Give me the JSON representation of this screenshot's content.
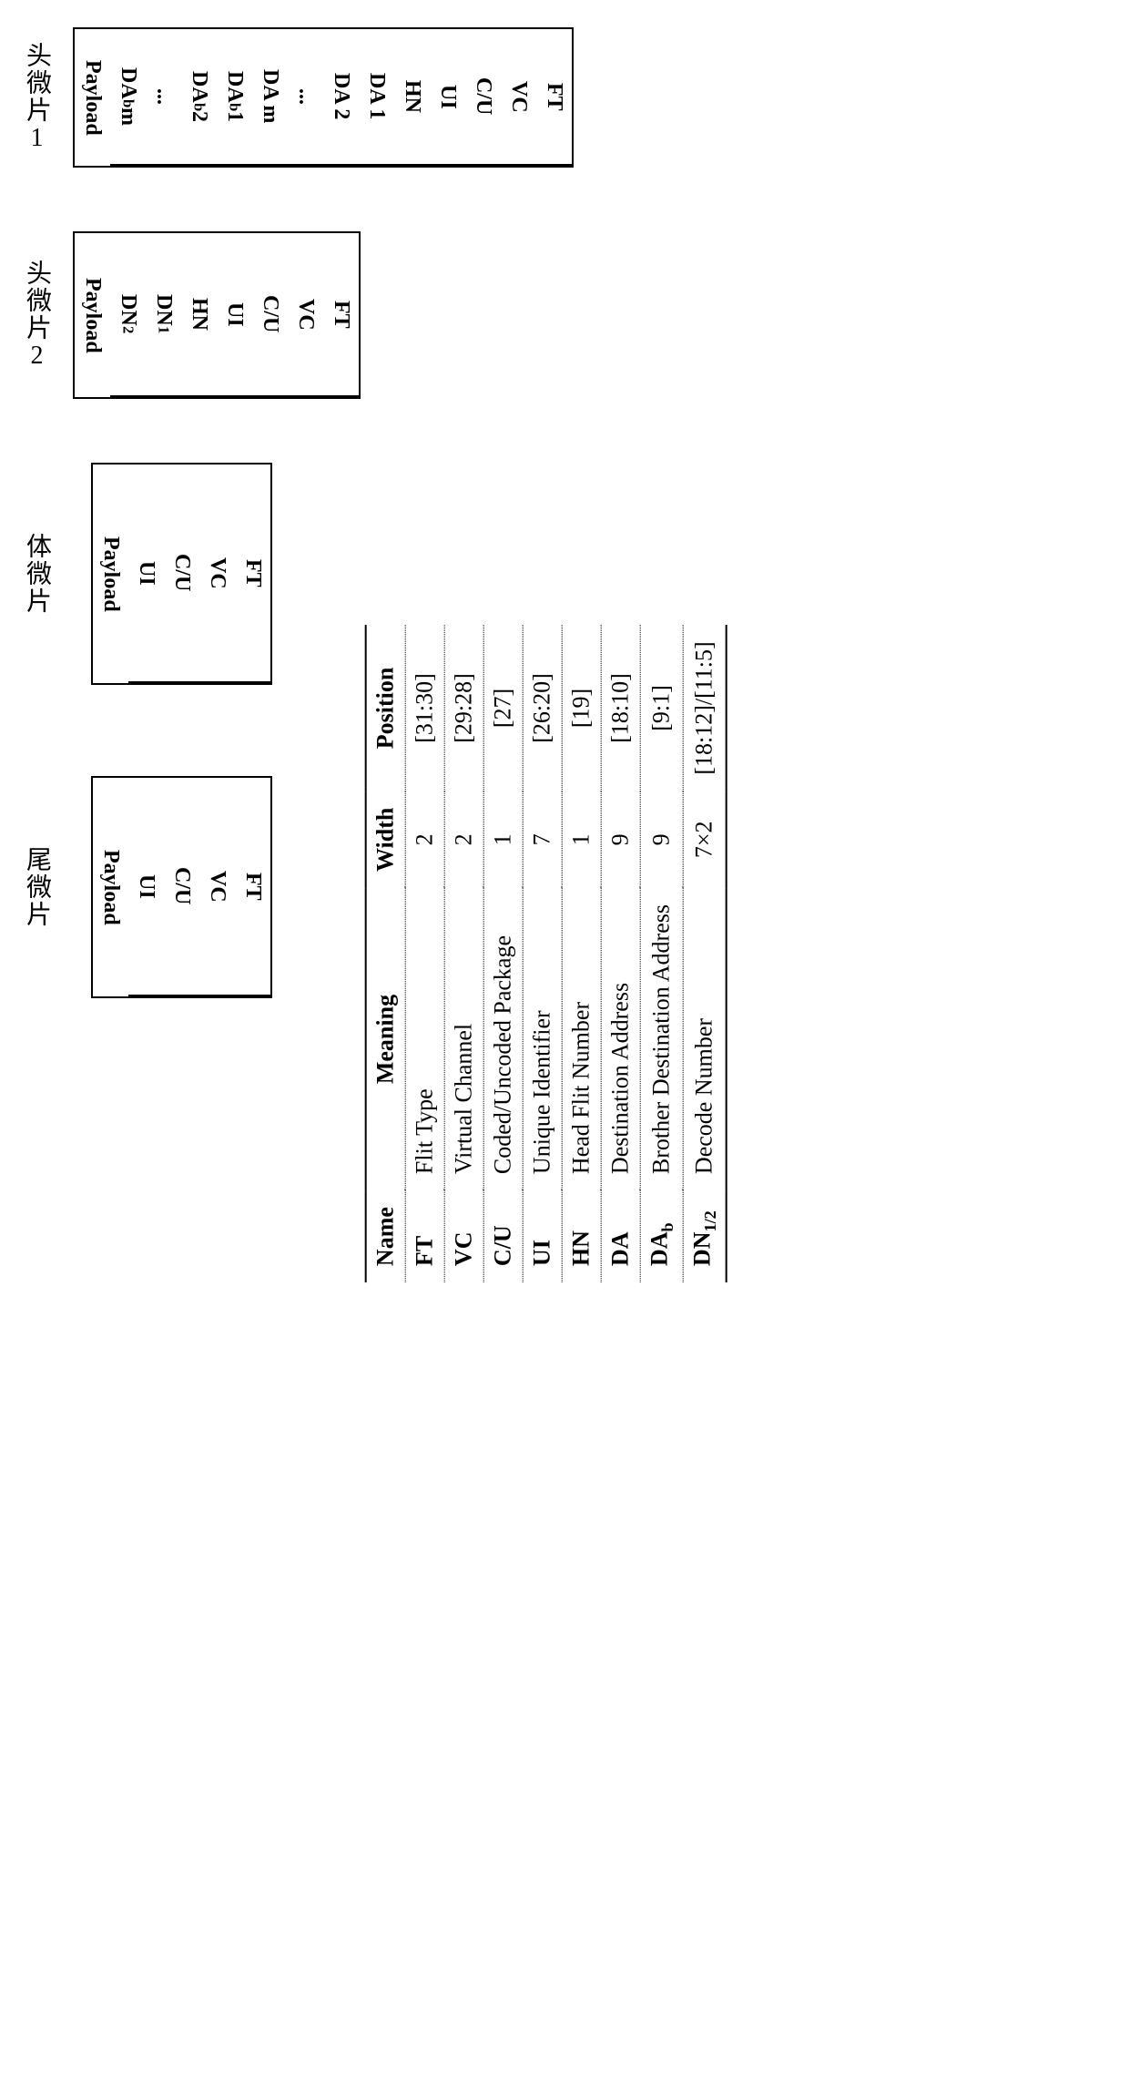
{
  "head1": {
    "label": "头微片1",
    "cells": [
      "FT",
      "VC",
      "C/U",
      "UI",
      "HN",
      "DA 1",
      "DA 2",
      "...",
      "DA m",
      "DAb 1",
      "DAb 2",
      "...",
      "DAb m",
      "Payload"
    ],
    "widths": [
      58,
      58,
      64,
      50,
      56,
      80,
      80,
      40,
      90,
      92,
      92,
      40,
      100,
      150
    ]
  },
  "head2": {
    "label": "头微片2",
    "cells": [
      "FT",
      "VC",
      "C/U",
      "UI",
      "HN",
      "DN1",
      "DN2",
      "Payload"
    ],
    "widths": [
      58,
      58,
      64,
      50,
      56,
      68,
      68,
      180
    ]
  },
  "body": {
    "label": "体微片",
    "cells": [
      "FT",
      "VC",
      "C/U",
      "UI",
      "Payload"
    ],
    "widths": [
      58,
      58,
      64,
      50,
      240
    ]
  },
  "tail": {
    "label": "尾微片",
    "cells": [
      "FT",
      "VC",
      "C/U",
      "UI",
      "Payload"
    ],
    "widths": [
      58,
      58,
      64,
      50,
      240
    ]
  },
  "definitions": {
    "headers": [
      "Name",
      "Meaning",
      "Width",
      "Position"
    ],
    "rows": [
      {
        "name": "FT",
        "meaning": "Flit Type",
        "width": "2",
        "position": "[31:30]"
      },
      {
        "name": "VC",
        "meaning": "Virtual Channel",
        "width": "2",
        "position": "[29:28]"
      },
      {
        "name": "C/U",
        "meaning": "Coded/Uncoded Package",
        "width": "1",
        "position": "[27]"
      },
      {
        "name": "UI",
        "meaning": "Unique Identifier",
        "width": "7",
        "position": "[26:20]"
      },
      {
        "name": "HN",
        "meaning": "Head Flit Number",
        "width": "1",
        "position": "[19]"
      },
      {
        "name": "DA",
        "meaning": "Destination Address",
        "width": "9",
        "position": "[18:10]"
      },
      {
        "name": "DAb",
        "meaning": "Brother Destination Address",
        "width": "9",
        "position": "[9:1]"
      },
      {
        "name": "DN1/2",
        "meaning": "Decode Number",
        "width": "7×2",
        "position": "[18:12]/[11:5]"
      }
    ]
  },
  "style": {
    "border_color": "#000000",
    "background": "#ffffff",
    "font_family": "Times New Roman",
    "label_fontsize": 28,
    "cell_fontsize": 24,
    "table_fontsize": 26
  }
}
